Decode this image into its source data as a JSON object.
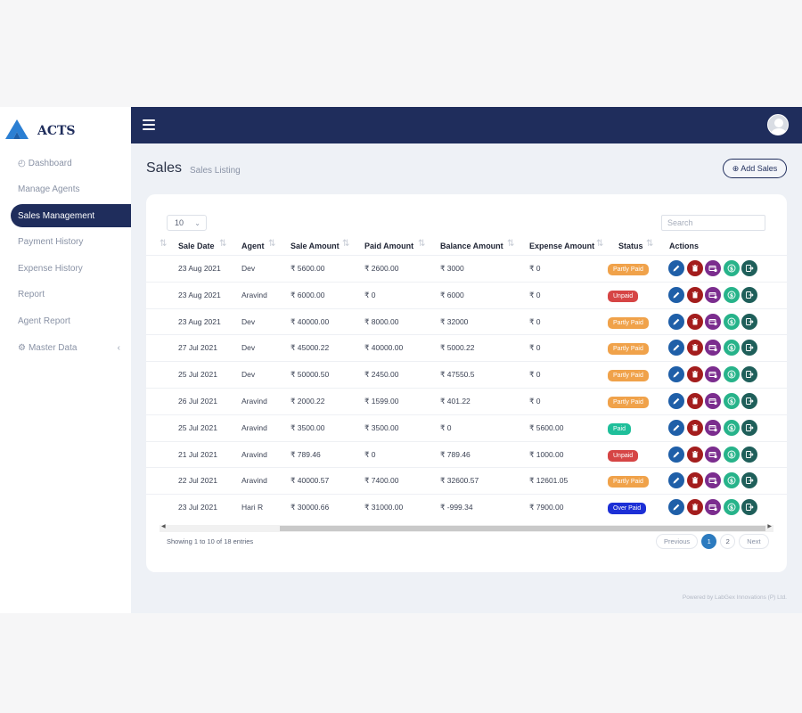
{
  "brand": {
    "name": "ACTS",
    "logo_color": "#2b7fd3"
  },
  "sidebar": {
    "items": [
      {
        "label": "Dashboard",
        "icon": "dashboard-gauge-icon",
        "active": false
      },
      {
        "label": "Manage Agents",
        "active": false
      },
      {
        "label": "Sales Management",
        "active": true
      },
      {
        "label": "Payment History",
        "active": false
      },
      {
        "label": "Expense History",
        "active": false
      },
      {
        "label": "Report",
        "active": false
      },
      {
        "label": "Agent Report",
        "active": false
      },
      {
        "label": "Master Data",
        "icon": "gears-icon",
        "chevron": "‹",
        "active": false
      }
    ]
  },
  "header": {
    "menu_icon": "hamburger-menu-icon",
    "avatar_icon": "user-avatar-icon"
  },
  "page": {
    "title": "Sales",
    "subtitle": "Sales Listing",
    "add_button": "Add Sales"
  },
  "table": {
    "page_length": "10",
    "search_placeholder": "Search",
    "columns": [
      "Sale Date",
      "Agent",
      "Sale Amount",
      "Paid Amount",
      "Balance Amount",
      "Expense Amount",
      "Status",
      "Actions"
    ],
    "rows": [
      {
        "date": "23 Aug 2021",
        "agent": "Dev",
        "sale": "₹ 5600.00",
        "paid": "₹ 2600.00",
        "balance": "₹ 3000",
        "expense": "₹ 0",
        "status": "Partly Paid"
      },
      {
        "date": "23 Aug 2021",
        "agent": "Aravind",
        "sale": "₹ 6000.00",
        "paid": "₹ 0",
        "balance": "₹ 6000",
        "expense": "₹ 0",
        "status": "Unpaid"
      },
      {
        "date": "23 Aug 2021",
        "agent": "Dev",
        "sale": "₹ 40000.00",
        "paid": "₹ 8000.00",
        "balance": "₹ 32000",
        "expense": "₹ 0",
        "status": "Partly Paid"
      },
      {
        "date": "27 Jul 2021",
        "agent": "Dev",
        "sale": "₹ 45000.22",
        "paid": "₹ 40000.00",
        "balance": "₹ 5000.22",
        "expense": "₹ 0",
        "status": "Partly Paid"
      },
      {
        "date": "25 Jul 2021",
        "agent": "Dev",
        "sale": "₹ 50000.50",
        "paid": "₹ 2450.00",
        "balance": "₹ 47550.5",
        "expense": "₹ 0",
        "status": "Partly Paid"
      },
      {
        "date": "26 Jul 2021",
        "agent": "Aravind",
        "sale": "₹ 2000.22",
        "paid": "₹ 1599.00",
        "balance": "₹ 401.22",
        "expense": "₹ 0",
        "status": "Partly Paid"
      },
      {
        "date": "25 Jul 2021",
        "agent": "Aravind",
        "sale": "₹ 3500.00",
        "paid": "₹ 3500.00",
        "balance": "₹ 0",
        "expense": "₹ 5600.00",
        "status": "Paid"
      },
      {
        "date": "21 Jul 2021",
        "agent": "Aravind",
        "sale": "₹ 789.46",
        "paid": "₹ 0",
        "balance": "₹ 789.46",
        "expense": "₹ 1000.00",
        "status": "Unpaid"
      },
      {
        "date": "22 Jul 2021",
        "agent": "Aravind",
        "sale": "₹ 40000.57",
        "paid": "₹ 7400.00",
        "balance": "₹ 32600.57",
        "expense": "₹ 12601.05",
        "status": "Partly Paid"
      },
      {
        "date": "23 Jul 2021",
        "agent": "Hari R",
        "sale": "₹ 30000.66",
        "paid": "₹ 31000.00",
        "balance": "₹ -999.34",
        "expense": "₹ 7900.00",
        "status": "Over Paid"
      }
    ],
    "status_colors": {
      "Partly Paid": "#f0a24a",
      "Unpaid": "#d64545",
      "Paid": "#1fbf9a",
      "Over Paid": "#1c2fd6"
    },
    "actions": [
      {
        "icon": "edit-pencil-icon",
        "color": "#1f5fa8"
      },
      {
        "icon": "delete-trash-icon",
        "color": "#a31d1d"
      },
      {
        "icon": "payment-card-icon",
        "color": "#7b2d8e"
      },
      {
        "icon": "dollar-coin-icon",
        "color": "#27b38a"
      },
      {
        "icon": "export-arrow-icon",
        "color": "#1f5f5a"
      }
    ],
    "info": "Showing 1 to 10 of 18 entries",
    "pagination": {
      "previous": "Previous",
      "pages": [
        "1",
        "2"
      ],
      "current": "1",
      "next": "Next"
    }
  },
  "footer": {
    "text": "Powered by LabGex Innovations (P) Ltd."
  }
}
